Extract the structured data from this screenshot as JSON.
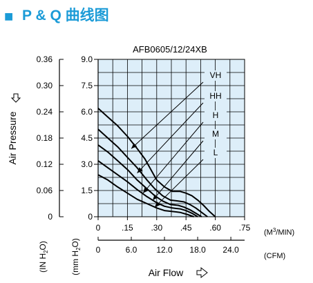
{
  "header": {
    "square_glyph": "■",
    "title": "P & Q 曲线图",
    "accent_color": "#1b9bd7"
  },
  "chart_data": {
    "type": "line",
    "title": "AFB0605/12/24XB",
    "ylabel": "Air Pressure",
    "xlabel": "Air Flow",
    "pressure_axes": [
      {
        "unit": "(IN H2O)",
        "ticks": [
          "0.36",
          "0.30",
          "0.24",
          "0.18",
          "0.12",
          "0.06",
          "0"
        ]
      },
      {
        "unit": "(mm H2O)",
        "ticks": [
          "9.0",
          "7.5",
          "6.0",
          "4.5",
          "3.0",
          "1.5",
          "0"
        ]
      }
    ],
    "flow_axes": [
      {
        "unit": "(M3/MIN)",
        "ticks": [
          "0",
          ".15",
          ".30",
          ".45",
          ".60",
          ".75"
        ]
      },
      {
        "unit": "(CFM)",
        "ticks": [
          "0",
          "6.0",
          "12.0",
          "18.0",
          "24.0"
        ]
      }
    ],
    "x_unit": "M3/MIN",
    "y_unit": "mm H2O",
    "xlim": [
      0,
      0.75
    ],
    "ylim": [
      0,
      9.0
    ],
    "grid": true,
    "plot_background": "#ddeef9",
    "line_color": "#000000",
    "series": [
      {
        "name": "VH",
        "x": [
          0,
          0.05,
          0.1,
          0.15,
          0.2,
          0.24,
          0.27,
          0.3,
          0.34,
          0.38,
          0.42,
          0.45,
          0.48,
          0.51,
          0.54,
          0.57,
          0.6
        ],
        "y": [
          6.2,
          5.7,
          5.2,
          4.6,
          3.9,
          3.3,
          2.7,
          2.1,
          1.7,
          1.45,
          1.45,
          1.35,
          1.2,
          0.95,
          0.65,
          0.3,
          0
        ]
      },
      {
        "name": "HH",
        "x": [
          0,
          0.05,
          0.1,
          0.15,
          0.2,
          0.25,
          0.29,
          0.33,
          0.37,
          0.41,
          0.44,
          0.47,
          0.5,
          0.53,
          0.56
        ],
        "y": [
          5.0,
          4.5,
          4.0,
          3.4,
          2.8,
          2.1,
          1.6,
          1.2,
          0.95,
          0.9,
          0.85,
          0.7,
          0.5,
          0.25,
          0
        ]
      },
      {
        "name": "H",
        "x": [
          0,
          0.05,
          0.1,
          0.15,
          0.2,
          0.25,
          0.29,
          0.33,
          0.37,
          0.41,
          0.44,
          0.47,
          0.5,
          0.53
        ],
        "y": [
          4.1,
          3.7,
          3.2,
          2.7,
          2.1,
          1.6,
          1.2,
          0.9,
          0.7,
          0.65,
          0.55,
          0.4,
          0.2,
          0
        ]
      },
      {
        "name": "M",
        "x": [
          0,
          0.05,
          0.1,
          0.15,
          0.2,
          0.25,
          0.3,
          0.34,
          0.38,
          0.42,
          0.45,
          0.48,
          0.51
        ],
        "y": [
          3.2,
          2.8,
          2.4,
          2.0,
          1.55,
          1.15,
          0.8,
          0.6,
          0.5,
          0.45,
          0.35,
          0.2,
          0
        ]
      },
      {
        "name": "L",
        "x": [
          0,
          0.05,
          0.1,
          0.15,
          0.2,
          0.25,
          0.3,
          0.34,
          0.38,
          0.42,
          0.46,
          0.49
        ],
        "y": [
          2.4,
          2.1,
          1.7,
          1.35,
          1.0,
          0.75,
          0.5,
          0.35,
          0.3,
          0.25,
          0.12,
          0
        ]
      }
    ],
    "callouts": [
      {
        "label": "VH",
        "x": 0.17,
        "y": 3.9
      },
      {
        "label": "HH",
        "x": 0.2,
        "y": 2.5
      },
      {
        "label": "H",
        "x": 0.23,
        "y": 1.35
      },
      {
        "label": "M",
        "x": 0.28,
        "y": 0.95
      },
      {
        "label": "L",
        "x": 0.29,
        "y": 0.55
      }
    ]
  }
}
